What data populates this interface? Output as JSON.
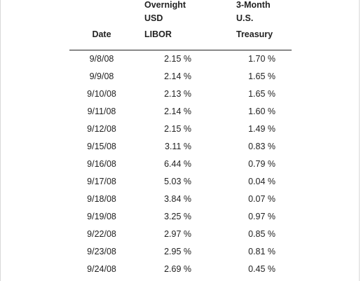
{
  "table": {
    "headers": {
      "date": [
        "",
        "",
        "Date"
      ],
      "libor": [
        "Overnight",
        "USD",
        "LIBOR"
      ],
      "treasury": [
        "3-Month",
        "U.S.",
        "Treasury"
      ]
    },
    "rows": [
      {
        "date": "9/8/08",
        "libor": "2.15 %",
        "treasury": "1.70 %"
      },
      {
        "date": "9/9/08",
        "libor": "2.14 %",
        "treasury": "1.65 %"
      },
      {
        "date": "9/10/08",
        "libor": "2.13 %",
        "treasury": "1.65 %"
      },
      {
        "date": "9/11/08",
        "libor": "2.14 %",
        "treasury": "1.60 %"
      },
      {
        "date": "9/12/08",
        "libor": "2.15 %",
        "treasury": "1.49 %"
      },
      {
        "date": "9/15/08",
        "libor": "3.11 %",
        "treasury": "0.83 %"
      },
      {
        "date": "9/16/08",
        "libor": "6.44 %",
        "treasury": "0.79 %"
      },
      {
        "date": "9/17/08",
        "libor": "5.03 %",
        "treasury": "0.04 %"
      },
      {
        "date": "9/18/08",
        "libor": "3.84 %",
        "treasury": "0.07 %"
      },
      {
        "date": "9/19/08",
        "libor": "3.25 %",
        "treasury": "0.97 %"
      },
      {
        "date": "9/22/08",
        "libor": "2.97 %",
        "treasury": "0.85 %"
      },
      {
        "date": "9/23/08",
        "libor": "2.95 %",
        "treasury": "0.81 %"
      },
      {
        "date": "9/24/08",
        "libor": "2.69 %",
        "treasury": "0.45 %"
      }
    ]
  }
}
